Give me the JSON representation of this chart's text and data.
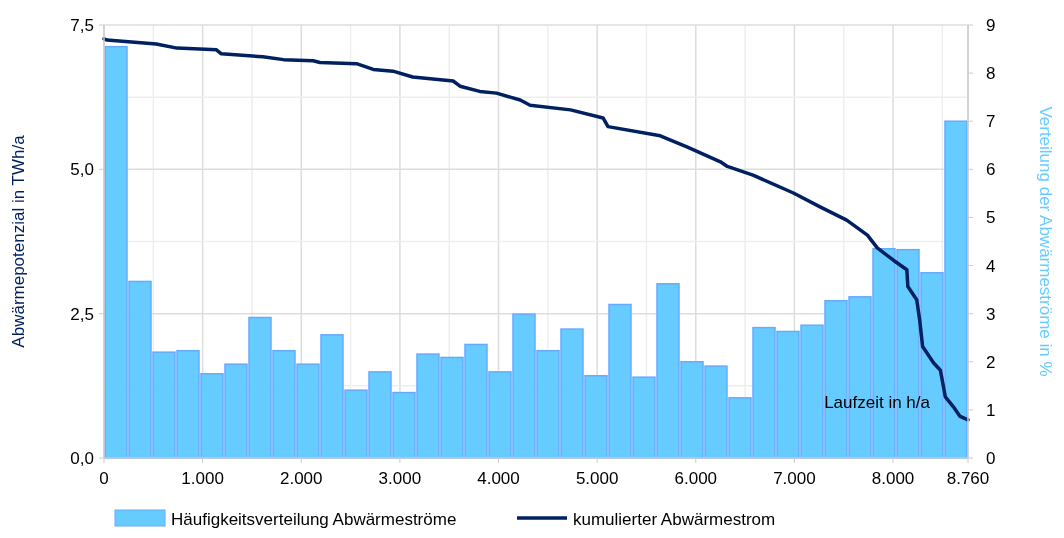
{
  "chart_data": {
    "type": "histogram",
    "xlabel": "Laufzeit in h/a",
    "ylabel": "Abwärmepotenzial in TWh/a",
    "y2label": "Verteilung der Abwärmeströme in %",
    "xlim": [
      0,
      8760
    ],
    "xticks": [
      0,
      {
        "value": 500,
        "label": null
      },
      {
        "value": 1000,
        "label": "1.000"
      },
      {
        "value": 1500,
        "label": null
      },
      {
        "value": 2000,
        "label": "2.000"
      },
      {
        "value": 2500,
        "label": null
      },
      {
        "value": 3000,
        "label": "3.000"
      },
      {
        "value": 3500,
        "label": null
      },
      {
        "value": 4000,
        "label": "4.000"
      },
      {
        "value": 4500,
        "label": null
      },
      {
        "value": 5000,
        "label": "5.000"
      },
      {
        "value": 5500,
        "label": null
      },
      {
        "value": 6000,
        "label": "6.000"
      },
      {
        "value": 6500,
        "label": null
      },
      {
        "value": 7000,
        "label": "7.000"
      },
      {
        "value": 7500,
        "label": null
      },
      {
        "value": 8000,
        "label": "8.000"
      },
      {
        "value": 8500,
        "label": null
      },
      {
        "value": 8760,
        "label": "8.760"
      }
    ],
    "ylim": [
      0,
      7.5
    ],
    "yticks": [
      {
        "value": 0,
        "label": "0,0"
      },
      {
        "value": 1.25,
        "label": null
      },
      {
        "value": 2.5,
        "label": "2,5"
      },
      {
        "value": 3.75,
        "label": null
      },
      {
        "value": 5,
        "label": "5,0"
      },
      {
        "value": 6.25,
        "label": null
      },
      {
        "value": 7.5,
        "label": "7,5"
      }
    ],
    "y2lim": [
      0,
      9
    ],
    "y2ticks": [
      0,
      1,
      2,
      3,
      4,
      5,
      6,
      7,
      8,
      9
    ],
    "grid": true,
    "legend": "bottom",
    "bins": [
      0,
      243.3,
      486.7,
      730,
      973.3,
      1216.7,
      1460,
      1703.3,
      1946.7,
      2190,
      2433.3,
      2676.7,
      2920,
      3163.3,
      3406.7,
      3650,
      3893.3,
      4136.7,
      4380,
      4623.3,
      4866.7,
      5110,
      5353.3,
      5596.7,
      5840,
      6083.3,
      6326.7,
      6570,
      6813.3,
      7056.7,
      7300,
      7543.3,
      7786.7,
      8030,
      8273.3,
      8516.7,
      8760
    ],
    "series": [
      {
        "name": "Häufigkeitsverteilung Abwärmeströme",
        "axis": "y2",
        "color": "#66ccff",
        "values": [
          8.55,
          3.67,
          2.2,
          2.23,
          1.75,
          1.95,
          2.92,
          2.23,
          1.95,
          2.56,
          1.41,
          1.79,
          1.36,
          2.16,
          2.09,
          2.36,
          1.79,
          2.99,
          2.23,
          2.68,
          1.71,
          3.19,
          1.68,
          3.62,
          2.0,
          1.91,
          1.25,
          2.71,
          2.63,
          2.76,
          3.27,
          3.35,
          4.35,
          4.33,
          3.85,
          7.0
        ]
      },
      {
        "name": "kumulierter Abwärmestrom",
        "type": "line",
        "color": "#002060",
        "x": [
          0,
          30,
          530,
          740,
          1140,
          1190,
          1610,
          1820,
          2120,
          2190,
          2560,
          2730,
          2930,
          3130,
          3540,
          3610,
          3810,
          3980,
          4220,
          4320,
          4730,
          5060,
          5110,
          5640,
          5910,
          6250,
          6320,
          6580,
          6990,
          7260,
          7530,
          7740,
          7840,
          8000,
          8140,
          8150,
          8240,
          8270,
          8300,
          8410,
          8480,
          8530,
          8610,
          8680,
          8760
        ],
        "values": [
          7.26,
          7.24,
          7.17,
          7.1,
          7.07,
          7.0,
          6.95,
          6.9,
          6.88,
          6.85,
          6.83,
          6.73,
          6.7,
          6.6,
          6.53,
          6.44,
          6.35,
          6.32,
          6.2,
          6.11,
          6.03,
          5.89,
          5.74,
          5.58,
          5.39,
          5.13,
          5.05,
          4.9,
          4.59,
          4.35,
          4.12,
          3.86,
          3.64,
          3.43,
          3.26,
          2.97,
          2.74,
          2.39,
          1.93,
          1.65,
          1.52,
          1.06,
          0.89,
          0.72,
          0.66
        ]
      }
    ]
  }
}
